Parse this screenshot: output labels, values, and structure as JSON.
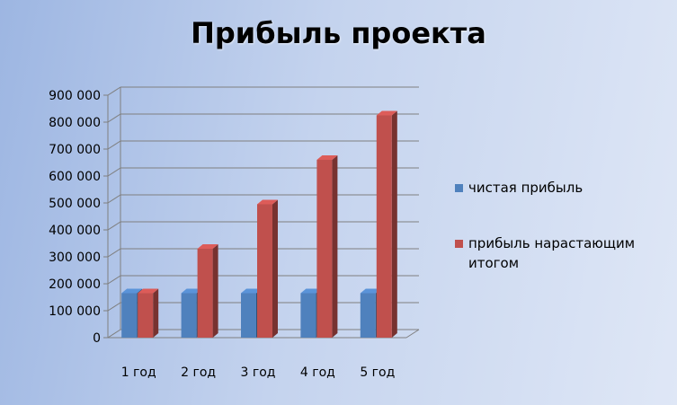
{
  "chart_data": {
    "type": "bar",
    "title": "Прибыль проекта",
    "xlabel": "",
    "ylabel": "",
    "categories": [
      "1 год",
      "2 год",
      "3 год",
      "4 год",
      "5 год"
    ],
    "series": [
      {
        "name": "чистая прибыль",
        "color": "#4f81bd",
        "values": [
          165000,
          165000,
          165000,
          165000,
          165000
        ]
      },
      {
        "name": "прибыль нарастающим итогом",
        "color": "#c0504d",
        "values": [
          165000,
          330000,
          495000,
          660000,
          825000
        ]
      }
    ],
    "ylim": [
      0,
      900000
    ],
    "yticks": [
      0,
      100000,
      200000,
      300000,
      400000,
      500000,
      600000,
      700000,
      800000,
      900000
    ],
    "ytick_labels": [
      "0",
      "100 000",
      "200 000",
      "300 000",
      "400 000",
      "500 000",
      "600 000",
      "700 000",
      "800 000",
      "900 000"
    ],
    "grid": true,
    "legend_position": "right",
    "bar_style": "3d"
  }
}
